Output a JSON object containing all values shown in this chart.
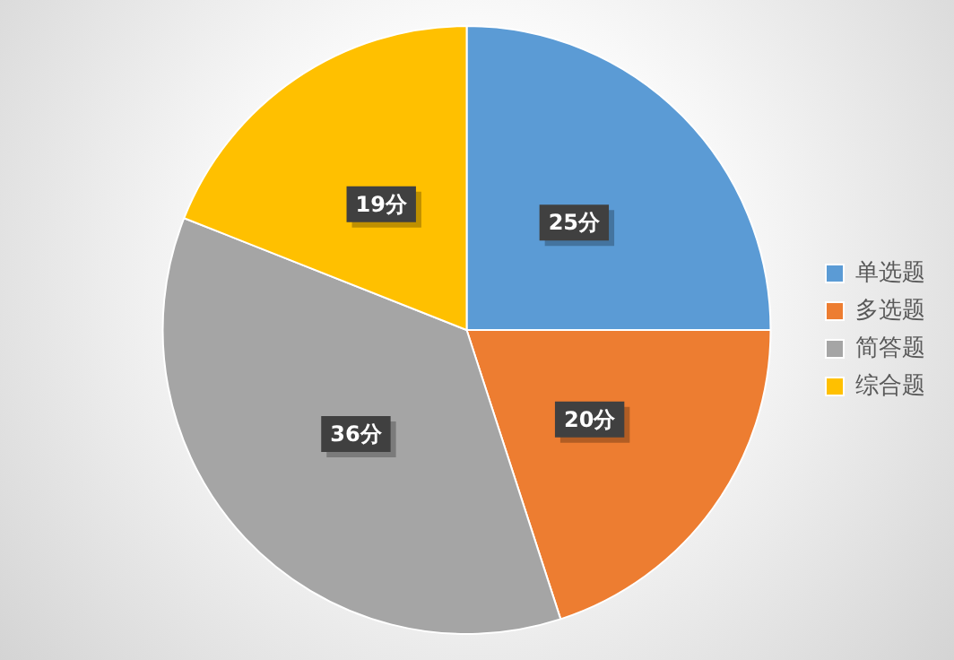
{
  "chart_data": {
    "type": "pie",
    "categories": [
      "单选题",
      "多选题",
      "简答题",
      "综合题"
    ],
    "values": [
      25,
      20,
      36,
      19
    ],
    "colors": [
      "#5b9bd5",
      "#ed7d31",
      "#a5a5a5",
      "#ffc000"
    ],
    "value_labels": [
      "25分",
      "20分",
      "36分",
      "19分"
    ],
    "legend": "right"
  }
}
